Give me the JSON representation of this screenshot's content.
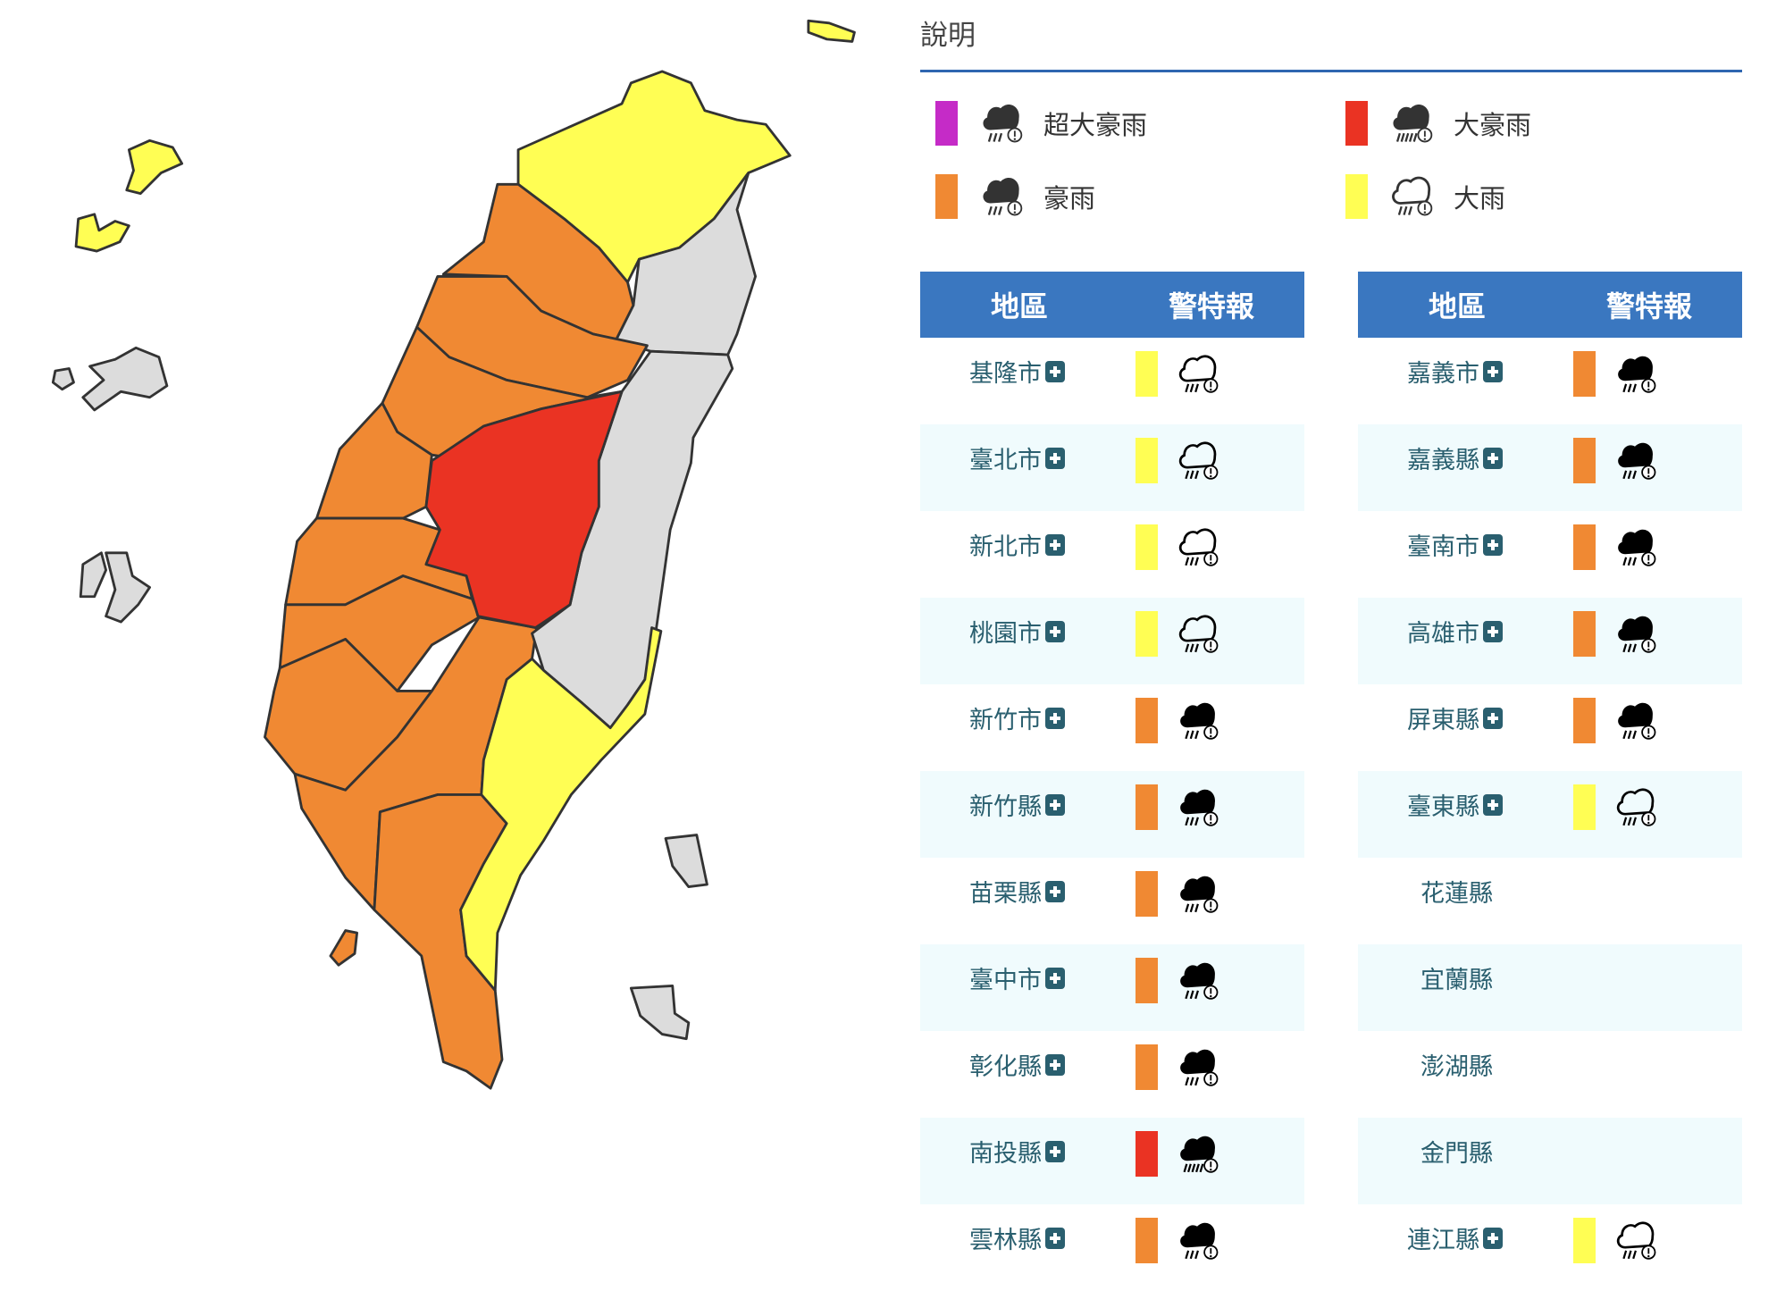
{
  "legend": {
    "title": "說明",
    "items": [
      {
        "label": "超大豪雨",
        "color": "#c52bc7",
        "icon": "extreme-torrential-rain-icon",
        "style": "filled-dark"
      },
      {
        "label": "大豪雨",
        "color": "#ea3323",
        "icon": "torrential-rain-icon",
        "style": "filled-dark"
      },
      {
        "label": "豪雨",
        "color": "#f08933",
        "icon": "extremely-heavy-rain-icon",
        "style": "filled-dark"
      },
      {
        "label": "大雨",
        "color": "#fffe54",
        "icon": "heavy-rain-icon",
        "style": "outline"
      }
    ]
  },
  "table_headers": {
    "region": "地區",
    "warning": "警特報"
  },
  "tables": [
    [
      {
        "name": "基隆市",
        "level": "大雨",
        "color": "#fffe54",
        "icon": "outline"
      },
      {
        "name": "臺北市",
        "level": "大雨",
        "color": "#fffe54",
        "icon": "outline"
      },
      {
        "name": "新北市",
        "level": "大雨",
        "color": "#fffe54",
        "icon": "outline"
      },
      {
        "name": "桃園市",
        "level": "大雨",
        "color": "#fffe54",
        "icon": "outline"
      },
      {
        "name": "新竹市",
        "level": "豪雨",
        "color": "#f08933",
        "icon": "filled"
      },
      {
        "name": "新竹縣",
        "level": "豪雨",
        "color": "#f08933",
        "icon": "filled"
      },
      {
        "name": "苗栗縣",
        "level": "豪雨",
        "color": "#f08933",
        "icon": "filled"
      },
      {
        "name": "臺中市",
        "level": "豪雨",
        "color": "#f08933",
        "icon": "filled"
      },
      {
        "name": "彰化縣",
        "level": "豪雨",
        "color": "#f08933",
        "icon": "filled"
      },
      {
        "name": "南投縣",
        "level": "大豪雨",
        "color": "#ea3323",
        "icon": "filled-heavy"
      },
      {
        "name": "雲林縣",
        "level": "豪雨",
        "color": "#f08933",
        "icon": "filled"
      }
    ],
    [
      {
        "name": "嘉義市",
        "level": "豪雨",
        "color": "#f08933",
        "icon": "filled"
      },
      {
        "name": "嘉義縣",
        "level": "豪雨",
        "color": "#f08933",
        "icon": "filled"
      },
      {
        "name": "臺南市",
        "level": "豪雨",
        "color": "#f08933",
        "icon": "filled"
      },
      {
        "name": "高雄市",
        "level": "豪雨",
        "color": "#f08933",
        "icon": "filled"
      },
      {
        "name": "屏東縣",
        "level": "豪雨",
        "color": "#f08933",
        "icon": "filled"
      },
      {
        "name": "臺東縣",
        "level": "大雨",
        "color": "#fffe54",
        "icon": "outline"
      },
      {
        "name": "花蓮縣",
        "level": "",
        "color": "",
        "icon": ""
      },
      {
        "name": "宜蘭縣",
        "level": "",
        "color": "",
        "icon": ""
      },
      {
        "name": "澎湖縣",
        "level": "",
        "color": "",
        "icon": ""
      },
      {
        "name": "金門縣",
        "level": "",
        "color": "",
        "icon": ""
      },
      {
        "name": "連江縣",
        "level": "大雨",
        "color": "#fffe54",
        "icon": "outline"
      }
    ]
  ],
  "map_colors": {
    "none": "#dcdcdc",
    "heavy": "#fffe54",
    "extremely_heavy": "#f08933",
    "torrential": "#ea3323"
  }
}
